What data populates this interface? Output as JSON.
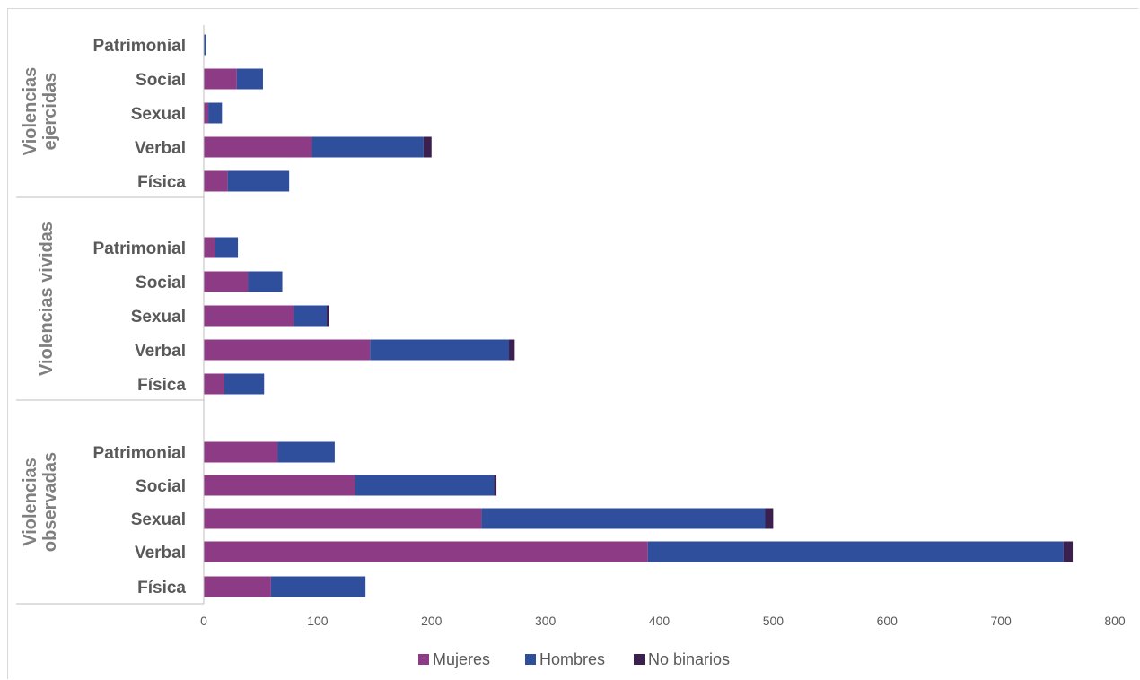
{
  "chart_data": {
    "type": "bar",
    "orientation": "horizontal",
    "stacked": true,
    "title": "",
    "xlabel": "",
    "ylabel": "",
    "xlim": [
      0,
      800
    ],
    "x_ticks": [
      0,
      100,
      200,
      300,
      400,
      500,
      600,
      700,
      800
    ],
    "grid": false,
    "legend_position": "bottom",
    "series": [
      {
        "name": "Mujeres",
        "color": "#8e3b85"
      },
      {
        "name": "Hombres",
        "color": "#2f4e9c"
      },
      {
        "name": "No binarios",
        "color": "#3a1f4f"
      }
    ],
    "groups": [
      {
        "label": "Violencias ejercidas",
        "label_lines": [
          "Violencias",
          "ejercidas"
        ],
        "categories": [
          {
            "label": "Patrimonial",
            "values": [
              0,
              2,
              0
            ]
          },
          {
            "label": "Social",
            "values": [
              29,
              23,
              0
            ]
          },
          {
            "label": "Sexual",
            "values": [
              4,
              12,
              0
            ]
          },
          {
            "label": "Verbal",
            "values": [
              95,
              98,
              7
            ]
          },
          {
            "label": "Física",
            "values": [
              21,
              54,
              0
            ]
          }
        ]
      },
      {
        "label": "Violencias vividas",
        "label_lines": [
          "Violencias vividas"
        ],
        "categories": [
          {
            "label": "Patrimonial",
            "values": [
              10,
              20,
              0
            ]
          },
          {
            "label": "Social",
            "values": [
              39,
              30,
              0
            ]
          },
          {
            "label": "Sexual",
            "values": [
              79,
              29,
              2
            ]
          },
          {
            "label": "Verbal",
            "values": [
              146,
              122,
              5
            ]
          },
          {
            "label": "Física",
            "values": [
              18,
              35,
              0
            ]
          }
        ]
      },
      {
        "label": "Violencias observadas",
        "label_lines": [
          "Violencias",
          "observadas"
        ],
        "categories": [
          {
            "label": "Patrimonial",
            "values": [
              65,
              50,
              0
            ]
          },
          {
            "label": "Social",
            "values": [
              133,
              122,
              2
            ]
          },
          {
            "label": "Sexual",
            "values": [
              244,
              249,
              7
            ]
          },
          {
            "label": "Verbal",
            "values": [
              390,
              365,
              8
            ]
          },
          {
            "label": "Física",
            "values": [
              59,
              83,
              0
            ]
          }
        ]
      }
    ]
  }
}
